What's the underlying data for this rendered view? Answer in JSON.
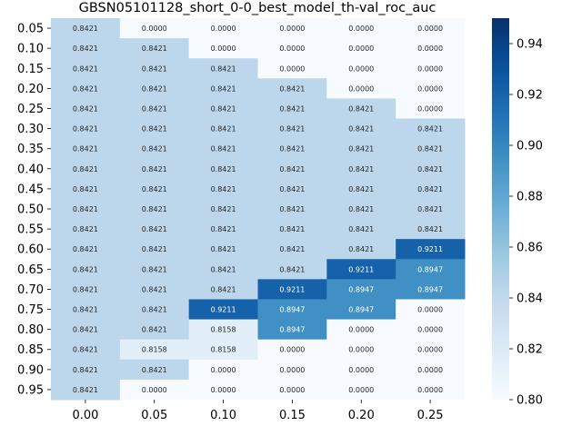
{
  "chart_data": {
    "type": "heatmap",
    "title": "GBSN05101128_short_0-0_best_model_th-val_roc_auc",
    "x_categories": [
      "0.00",
      "0.05",
      "0.10",
      "0.15",
      "0.20",
      "0.25"
    ],
    "y_categories": [
      "0.05",
      "0.10",
      "0.15",
      "0.20",
      "0.25",
      "0.30",
      "0.35",
      "0.40",
      "0.45",
      "0.50",
      "0.55",
      "0.60",
      "0.65",
      "0.70",
      "0.75",
      "0.80",
      "0.85",
      "0.90",
      "0.95"
    ],
    "values": [
      [
        0.8421,
        0.0,
        0.0,
        0.0,
        0.0,
        0.0
      ],
      [
        0.8421,
        0.8421,
        0.0,
        0.0,
        0.0,
        0.0
      ],
      [
        0.8421,
        0.8421,
        0.8421,
        0.0,
        0.0,
        0.0
      ],
      [
        0.8421,
        0.8421,
        0.8421,
        0.8421,
        0.0,
        0.0
      ],
      [
        0.8421,
        0.8421,
        0.8421,
        0.8421,
        0.8421,
        0.0
      ],
      [
        0.8421,
        0.8421,
        0.8421,
        0.8421,
        0.8421,
        0.8421
      ],
      [
        0.8421,
        0.8421,
        0.8421,
        0.8421,
        0.8421,
        0.8421
      ],
      [
        0.8421,
        0.8421,
        0.8421,
        0.8421,
        0.8421,
        0.8421
      ],
      [
        0.8421,
        0.8421,
        0.8421,
        0.8421,
        0.8421,
        0.8421
      ],
      [
        0.8421,
        0.8421,
        0.8421,
        0.8421,
        0.8421,
        0.8421
      ],
      [
        0.8421,
        0.8421,
        0.8421,
        0.8421,
        0.8421,
        0.8421
      ],
      [
        0.8421,
        0.8421,
        0.8421,
        0.8421,
        0.8421,
        0.9211
      ],
      [
        0.8421,
        0.8421,
        0.8421,
        0.8421,
        0.9211,
        0.8947
      ],
      [
        0.8421,
        0.8421,
        0.8421,
        0.9211,
        0.8947,
        0.8947
      ],
      [
        0.8421,
        0.8421,
        0.9211,
        0.8947,
        0.8947,
        0.0
      ],
      [
        0.8421,
        0.8421,
        0.8158,
        0.8947,
        0.0,
        0.0
      ],
      [
        0.8421,
        0.8158,
        0.8158,
        0.0,
        0.0,
        0.0
      ],
      [
        0.8421,
        0.8421,
        0.0,
        0.0,
        0.0,
        0.0
      ],
      [
        0.8421,
        0.0,
        0.0,
        0.0,
        0.0,
        0.0
      ]
    ],
    "colorbar": {
      "min": 0.8,
      "max": 0.95,
      "ticks": [
        "0.80",
        "0.82",
        "0.84",
        "0.86",
        "0.88",
        "0.90",
        "0.92",
        "0.94"
      ],
      "colormap": "Blues"
    },
    "value_format": 4
  }
}
